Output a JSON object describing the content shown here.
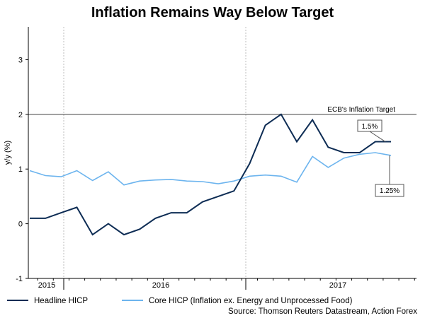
{
  "chart_data": {
    "type": "line",
    "title": "Inflation Remains Way Below Target",
    "xlabel": "",
    "ylabel": "y/y (%)",
    "ylim": [
      -1,
      3.6
    ],
    "yticks": [
      "-1",
      "0",
      "1",
      "2",
      "3"
    ],
    "year_labels": [
      "2015",
      "2016",
      "2017"
    ],
    "grid": "vertical dotted at year boundaries",
    "reference_line": {
      "value": 2,
      "label": "ECB's Inflation Target"
    },
    "series": [
      {
        "name": "Headline HICP",
        "color": "#0d2c54",
        "values": [
          0.1,
          0.1,
          0.2,
          0.3,
          -0.2,
          0.0,
          -0.2,
          -0.1,
          0.1,
          0.2,
          0.2,
          0.4,
          0.5,
          0.6,
          1.1,
          1.8,
          2.0,
          1.5,
          1.9,
          1.4,
          1.3,
          1.3,
          1.5,
          1.5
        ],
        "end_label": "1.5%"
      },
      {
        "name": "Core HICP (Inflation ex. Energy and Unprocessed Food)",
        "color": "#6cb4ee",
        "values": [
          0.97,
          0.88,
          0.86,
          0.97,
          0.79,
          0.95,
          0.71,
          0.78,
          0.8,
          0.81,
          0.78,
          0.77,
          0.73,
          0.78,
          0.87,
          0.89,
          0.87,
          0.76,
          1.23,
          1.03,
          1.2,
          1.27,
          1.3,
          1.25
        ],
        "end_label": "1.25%"
      }
    ]
  },
  "source": "Source: Thomson Reuters Datastream, Action Forex"
}
